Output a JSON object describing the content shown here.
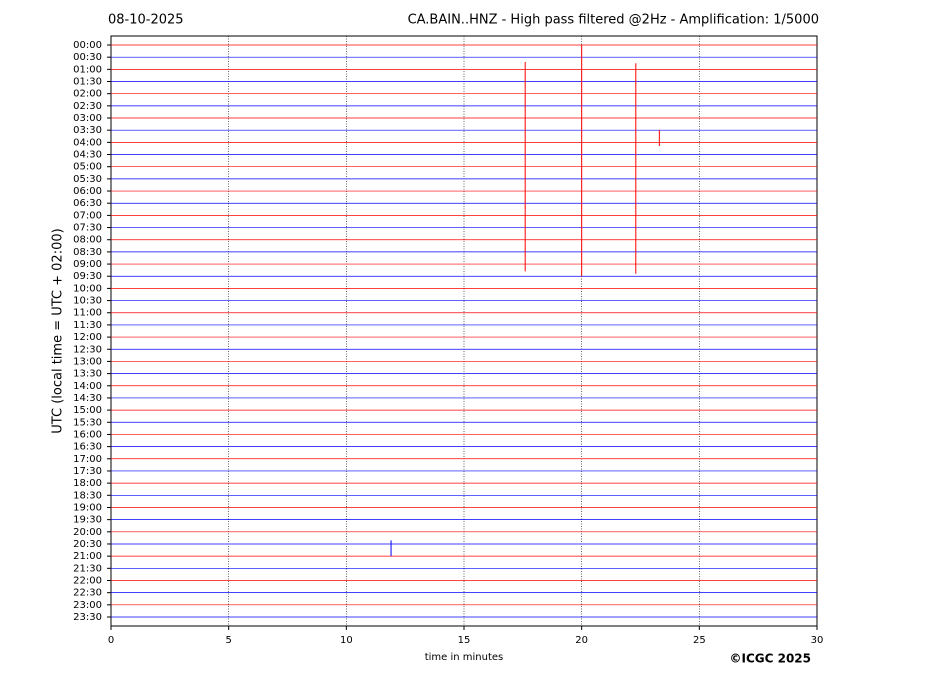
{
  "chart_data": {
    "type": "helicorder",
    "date": "08-10-2025",
    "title": "CA.BAIN..HNZ - High pass filtered @2Hz - Amplification: 1/5000",
    "y_label": "UTC (local time = UTC + 02:00)",
    "x_label": "time in minutes",
    "credit": "©ICGC 2025",
    "categories": [
      "00:00",
      "00:30",
      "01:00",
      "01:30",
      "02:00",
      "02:30",
      "03:00",
      "03:30",
      "04:00",
      "04:30",
      "05:00",
      "05:30",
      "06:00",
      "06:30",
      "07:00",
      "07:30",
      "08:00",
      "08:30",
      "09:00",
      "09:30",
      "10:00",
      "10:30",
      "11:00",
      "11:30",
      "12:00",
      "12:30",
      "13:00",
      "13:30",
      "14:00",
      "14:30",
      "15:00",
      "15:30",
      "16:00",
      "16:30",
      "17:00",
      "17:30",
      "18:00",
      "18:30",
      "19:00",
      "19:30",
      "20:00",
      "20:30",
      "21:00",
      "21:30",
      "22:00",
      "22:30",
      "23:00",
      "23:30"
    ],
    "colors": [
      "#ff0000",
      "#0000ff"
    ],
    "xlim": [
      0,
      30
    ],
    "xticks": [
      0,
      5,
      10,
      15,
      20,
      25,
      30
    ],
    "grid": true,
    "events": [
      {
        "x": 17.6,
        "from_row": 1.4,
        "to_row": 18.6
      },
      {
        "x": 20.0,
        "from_row": 0,
        "to_row": 19
      },
      {
        "x": 22.3,
        "from_row": 1.5,
        "to_row": 18.8
      },
      {
        "x": 23.3,
        "from_row": 7,
        "to_row": 8.3
      },
      {
        "x": 11.9,
        "from_row": 40.7,
        "to_row": 42
      }
    ]
  }
}
